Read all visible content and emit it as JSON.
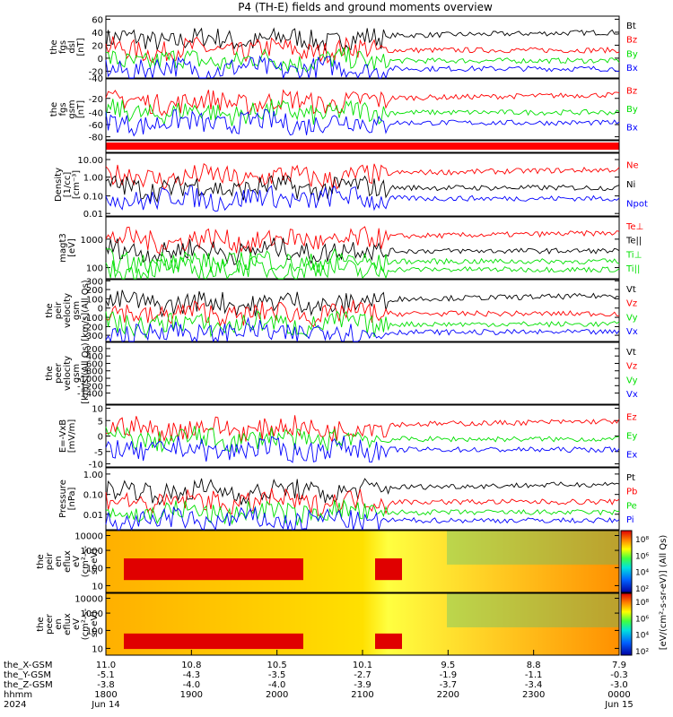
{
  "title": "P4 (TH-E) fields and ground moments overview",
  "colors": {
    "black": "#000000",
    "red": "#ff0000",
    "green": "#00e000",
    "blue": "#0000ff"
  },
  "panels": [
    {
      "id": "fgs-dsl",
      "ylabel": [
        "the",
        "fgs",
        "dsl",
        "[nT]"
      ],
      "yticks": [
        "60",
        "40",
        "20",
        "0",
        "-20",
        "-40"
      ],
      "legend": [
        {
          "label": "Bt",
          "color": "#000000"
        },
        {
          "label": "Bz",
          "color": "#ff0000"
        },
        {
          "label": "By",
          "color": "#00e000"
        },
        {
          "label": "Bx",
          "color": "#0000ff"
        }
      ]
    },
    {
      "id": "fgs-gsm",
      "ylabel": [
        "the",
        "fgs",
        "gsm",
        "[nT]"
      ],
      "yticks": [
        "-20",
        "-40",
        "-60",
        "-80"
      ],
      "yticks_upper": [
        "40",
        "20",
        "0"
      ],
      "legend": [
        {
          "label": "Bz",
          "color": "#ff0000"
        },
        {
          "label": "By",
          "color": "#00e000"
        },
        {
          "label": "Bx",
          "color": "#0000ff"
        }
      ]
    },
    {
      "id": "density",
      "ylabel": [
        "Density",
        "[1/cc]",
        "[cm⁻³]"
      ],
      "yticks": [
        "10.00",
        "1.00",
        "0.10",
        "0.01"
      ],
      "legend": [
        {
          "label": "Ne",
          "color": "#ff0000"
        },
        {
          "label": "Ni",
          "color": "#000000"
        },
        {
          "label": "Npot",
          "color": "#0000ff"
        }
      ]
    },
    {
      "id": "temperature",
      "ylabel": [
        "magt3",
        "[eV]"
      ],
      "yticks": [
        "1000",
        "100"
      ],
      "legend": [
        {
          "label": "Te⊥",
          "color": "#ff0000"
        },
        {
          "label": "Te||",
          "color": "#000000"
        },
        {
          "label": "Ti⊥",
          "color": "#00e000"
        },
        {
          "label": "Ti||",
          "color": "#00e000"
        }
      ]
    },
    {
      "id": "peir-velocity",
      "ylabel": [
        "the",
        "peir",
        "velocity",
        "gsm",
        "[km/s](All Qs)"
      ],
      "yticks": [
        "300",
        "200",
        "100",
        "0",
        "-100",
        "-200",
        "-300"
      ],
      "legend": [
        {
          "label": "Vt",
          "color": "#000000"
        },
        {
          "label": "Vz",
          "color": "#ff0000"
        },
        {
          "label": "Vy",
          "color": "#00e000"
        },
        {
          "label": "Vx",
          "color": "#0000ff"
        }
      ]
    },
    {
      "id": "peer-velocity",
      "ylabel": [
        "the",
        "peer",
        "velocity",
        "gsm",
        "[km/s](All Qs)"
      ],
      "yticks": [
        "-200",
        "-400",
        "-600",
        "-800",
        "-1000",
        "-1200",
        "-1400"
      ],
      "legend": [
        {
          "label": "Vt",
          "color": "#000000"
        },
        {
          "label": "Vz",
          "color": "#ff0000"
        },
        {
          "label": "Vy",
          "color": "#00e000"
        },
        {
          "label": "Vx",
          "color": "#0000ff"
        }
      ]
    },
    {
      "id": "efield",
      "ylabel": [
        "E=-VxB",
        "[mV/m]"
      ],
      "yticks": [
        "10",
        "5",
        "0",
        "-5",
        "-10"
      ],
      "legend": [
        {
          "label": "Ez",
          "color": "#ff0000"
        },
        {
          "label": "Ey",
          "color": "#00e000"
        },
        {
          "label": "Ex",
          "color": "#0000ff"
        }
      ]
    },
    {
      "id": "pressure",
      "ylabel": [
        "Pressure",
        "[nPa]"
      ],
      "yticks": [
        "1.00",
        "0.10",
        "0.01"
      ],
      "legend": [
        {
          "label": "Pt",
          "color": "#000000"
        },
        {
          "label": "Pb",
          "color": "#ff0000"
        },
        {
          "label": "Pe",
          "color": "#00e000"
        },
        {
          "label": "Pi",
          "color": "#0000ff"
        }
      ]
    },
    {
      "id": "peir-eflux",
      "ylabel": [
        "the",
        "peir",
        "en",
        "eflux",
        "eV",
        "(cm²-s-",
        "sr-eV)"
      ],
      "yticks": [
        "10000",
        "1000",
        "100",
        "10"
      ]
    },
    {
      "id": "peer-eflux",
      "ylabel": [
        "the",
        "peer",
        "en",
        "eflux",
        "eV",
        "(cm²-s-",
        "sr-eV)"
      ],
      "yticks": [
        "10000",
        "1000",
        "100",
        "10"
      ]
    }
  ],
  "colorbar": {
    "label": "[eV/(cm²-s-sr-eV)] (All Qs)",
    "ticks_upper": [
      "10⁸",
      "10⁶",
      "10⁴",
      "10²"
    ],
    "ticks_lower": [
      "10⁸",
      "10⁶",
      "10⁴",
      "10²"
    ]
  },
  "xaxis": {
    "rows": [
      {
        "label": "the_X-GSM",
        "values": [
          "11.0",
          "10.8",
          "10.5",
          "10.1",
          "9.5",
          "8.8",
          "7.9"
        ]
      },
      {
        "label": "the_Y-GSM",
        "values": [
          "-5.1",
          "-4.3",
          "-3.5",
          "-2.7",
          "-1.9",
          "-1.1",
          "-0.3"
        ]
      },
      {
        "label": "the_Z-GSM",
        "values": [
          "-3.8",
          "-4.0",
          "-4.0",
          "-3.9",
          "-3.7",
          "-3.4",
          "-3.0"
        ]
      },
      {
        "label": "hhmm",
        "values": [
          "1800",
          "1900",
          "2000",
          "2100",
          "2200",
          "2300",
          "0000"
        ]
      },
      {
        "label": "2024",
        "values": [
          "Jun 14",
          "",
          "",
          "",
          "",
          "",
          "Jun 15"
        ]
      }
    ]
  }
}
